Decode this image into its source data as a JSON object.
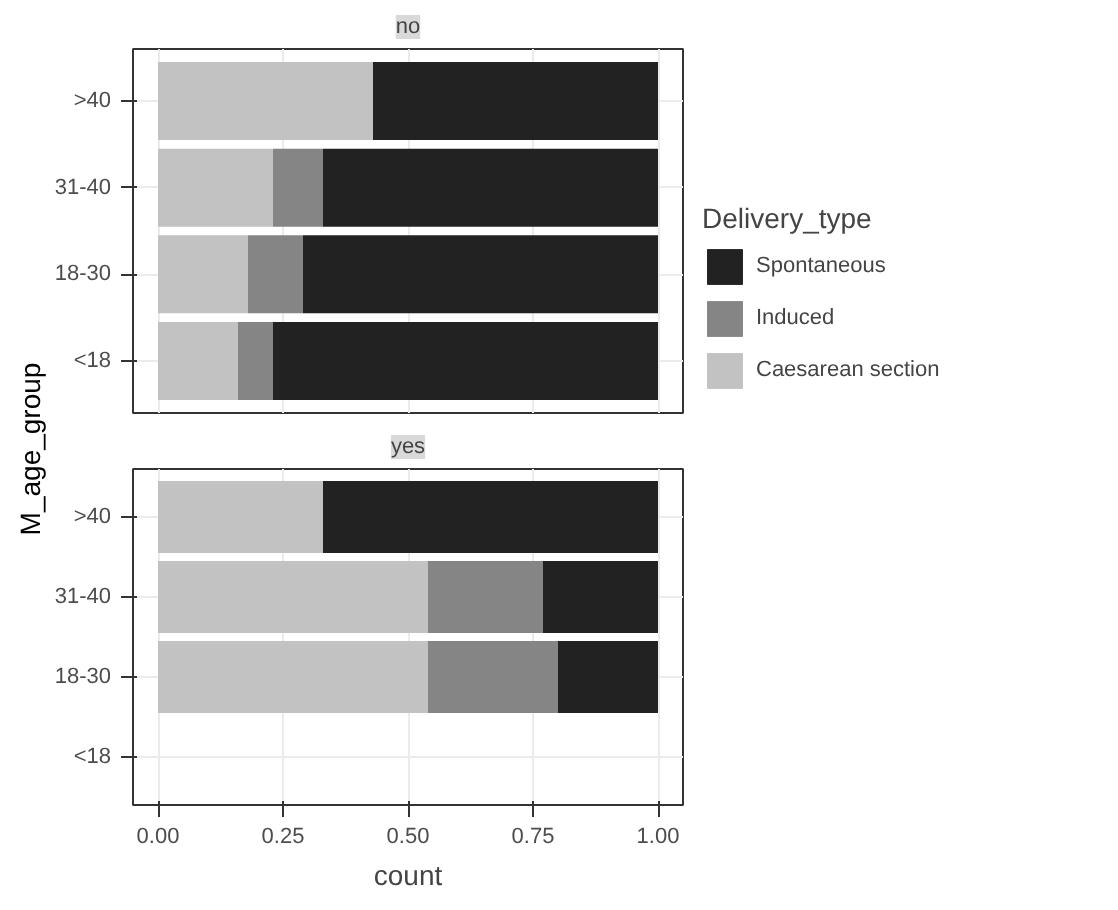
{
  "chart_data": [
    {
      "type": "bar",
      "orientation": "horizontal",
      "stacked": true,
      "title": "no",
      "ylabel": "M_age_group",
      "categories": [
        ">40",
        "31-40",
        "18-30",
        "<18"
      ],
      "series": [
        {
          "name": "Caesarean section",
          "color": "#c2c2c2",
          "values": [
            0.43,
            0.23,
            0.18,
            0.16
          ]
        },
        {
          "name": "Induced",
          "color": "#858585",
          "values": [
            0,
            0.1,
            0.11,
            0.07
          ]
        },
        {
          "name": "Spontaneous",
          "color": "#222222",
          "values": [
            0.57,
            0.67,
            0.71,
            0.77
          ]
        }
      ],
      "xlim": [
        -0.05,
        1.05
      ],
      "xticks": [
        0,
        0.25,
        0.5,
        0.75,
        1
      ],
      "tick_labels": "y",
      "grid": true,
      "legend": "right",
      "legend_title": "Delivery_type"
    },
    {
      "type": "bar",
      "orientation": "horizontal",
      "stacked": true,
      "title": "yes",
      "xlabel": "count",
      "categories": [
        ">40",
        "31-40",
        "18-30",
        "<18"
      ],
      "series": [
        {
          "color": "#c2c2c2",
          "values": [
            0.33,
            0.54,
            0.54,
            null
          ]
        },
        {
          "color": "#858585",
          "values": [
            0,
            0.23,
            0.26,
            null
          ]
        },
        {
          "color": "#222222",
          "values": [
            0.67,
            0.23,
            0.2,
            null
          ]
        }
      ],
      "xlim": [
        -0.05,
        1.05
      ],
      "xticks": [
        {
          "value": 0,
          "label": "0.00"
        },
        {
          "value": 0.25,
          "label": "0.25"
        },
        {
          "value": 0.5,
          "label": "0.50"
        },
        {
          "value": 0.75,
          "label": "0.75"
        },
        {
          "value": 1,
          "label": "1.00"
        }
      ],
      "grid": true
    }
  ]
}
